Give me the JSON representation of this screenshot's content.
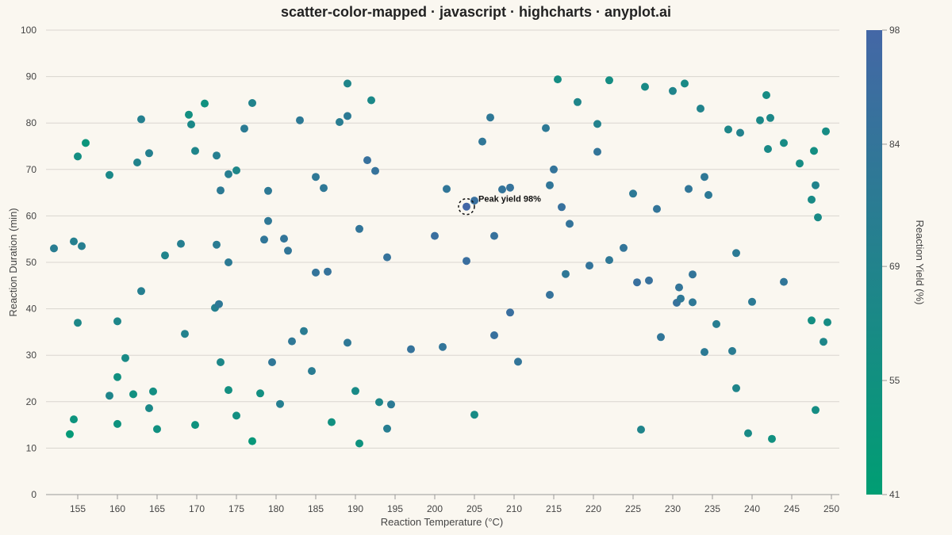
{
  "chart_data": {
    "type": "scatter",
    "title": "scatter-color-mapped · javascript · highcharts · anyplot.ai",
    "xlabel": "Reaction Temperature (°C)",
    "ylabel": "Reaction Duration (min)",
    "colorbar_label": "Reaction Yield (%)",
    "xlim": [
      151,
      251
    ],
    "ylim": [
      0,
      100
    ],
    "xticks": [
      155,
      160,
      165,
      170,
      175,
      180,
      185,
      190,
      195,
      200,
      205,
      210,
      215,
      220,
      225,
      230,
      235,
      240,
      245,
      250
    ],
    "yticks": [
      0,
      10,
      20,
      30,
      40,
      50,
      60,
      70,
      80,
      90,
      100
    ],
    "color_range": [
      41,
      98
    ],
    "color_ticks": [
      41,
      55,
      69,
      84,
      98
    ],
    "color_low": "#009e73",
    "color_high": "#4467a6",
    "grid": true,
    "annotation": {
      "label": "Peak yield 98%",
      "x": 204,
      "y": 62,
      "value": 98
    },
    "points": [
      [
        152,
        53,
        75
      ],
      [
        154.5,
        54.5,
        72
      ],
      [
        155,
        37,
        65
      ],
      [
        155.5,
        53.5,
        73
      ],
      [
        155,
        72.8,
        58
      ],
      [
        156,
        75.7,
        50
      ],
      [
        154.5,
        16.2,
        52
      ],
      [
        154,
        13,
        45
      ],
      [
        159,
        68.8,
        64
      ],
      [
        159,
        21.3,
        67
      ],
      [
        160,
        25.3,
        55
      ],
      [
        160,
        15.2,
        53
      ],
      [
        160,
        37.3,
        66
      ],
      [
        161,
        29.4,
        62
      ],
      [
        162,
        21.6,
        56
      ],
      [
        162.5,
        71.5,
        69
      ],
      [
        163,
        80.8,
        72
      ],
      [
        163,
        43.8,
        73
      ],
      [
        164,
        73.5,
        72
      ],
      [
        164,
        18.6,
        64
      ],
      [
        164.5,
        22.2,
        58
      ],
      [
        165,
        14.1,
        55
      ],
      [
        166,
        51.5,
        68
      ],
      [
        168,
        54,
        73
      ],
      [
        168.5,
        34.6,
        70
      ],
      [
        169,
        81.8,
        57
      ],
      [
        169.3,
        79.7,
        64
      ],
      [
        169.8,
        74,
        67
      ],
      [
        169.8,
        15,
        53
      ],
      [
        171,
        84.2,
        54
      ],
      [
        172.3,
        40.2,
        72
      ],
      [
        172.5,
        73,
        73
      ],
      [
        172.5,
        53.8,
        76
      ],
      [
        172.8,
        41,
        80
      ],
      [
        173,
        65.5,
        78
      ],
      [
        173,
        28.5,
        65
      ],
      [
        174,
        50,
        78
      ],
      [
        174,
        69,
        74
      ],
      [
        174,
        22.5,
        57
      ],
      [
        175,
        69.8,
        66
      ],
      [
        175,
        17,
        57
      ],
      [
        176,
        78.8,
        77
      ],
      [
        177,
        84.3,
        69
      ],
      [
        177,
        11.5,
        48
      ],
      [
        178,
        21.8,
        57
      ],
      [
        178.5,
        54.9,
        82
      ],
      [
        179,
        65.4,
        79
      ],
      [
        179,
        58.9,
        80
      ],
      [
        179.5,
        28.5,
        81
      ],
      [
        180.5,
        19.5,
        73
      ],
      [
        181,
        55.1,
        83
      ],
      [
        181.5,
        52.5,
        82
      ],
      [
        182,
        33,
        80
      ],
      [
        183,
        80.6,
        79
      ],
      [
        183.5,
        35.2,
        76
      ],
      [
        184.5,
        26.6,
        76
      ],
      [
        185,
        68.4,
        80
      ],
      [
        185,
        47.8,
        85
      ],
      [
        186,
        66,
        80
      ],
      [
        186.5,
        48,
        86
      ],
      [
        187,
        15.6,
        55
      ],
      [
        188,
        80.2,
        75
      ],
      [
        189,
        32.7,
        80
      ],
      [
        189,
        88.5,
        67
      ],
      [
        189,
        81.5,
        78
      ],
      [
        190,
        22.3,
        62
      ],
      [
        190.5,
        11,
        53
      ],
      [
        190.5,
        57.2,
        83
      ],
      [
        191.5,
        72,
        88
      ],
      [
        192,
        84.9,
        64
      ],
      [
        192.5,
        69.7,
        86
      ],
      [
        193,
        19.9,
        66
      ],
      [
        194,
        14.2,
        74
      ],
      [
        194,
        51.1,
        86
      ],
      [
        194.5,
        19.4,
        78
      ],
      [
        197,
        31.3,
        86
      ],
      [
        200,
        55.7,
        90
      ],
      [
        201,
        31.8,
        83
      ],
      [
        201.5,
        65.8,
        82
      ],
      [
        204,
        62,
        98
      ],
      [
        204,
        50.3,
        90
      ],
      [
        205,
        63.3,
        89
      ],
      [
        205,
        17.2,
        61
      ],
      [
        206,
        76,
        81
      ],
      [
        207,
        81.2,
        80
      ],
      [
        207.5,
        55.7,
        87
      ],
      [
        207.5,
        34.3,
        88
      ],
      [
        208.5,
        65.7,
        85
      ],
      [
        209.5,
        66.1,
        86
      ],
      [
        209.5,
        39.2,
        90
      ],
      [
        210.5,
        28.6,
        83
      ],
      [
        214,
        78.9,
        79
      ],
      [
        214.5,
        66.6,
        82
      ],
      [
        214.5,
        43,
        86
      ],
      [
        215,
        70,
        85
      ],
      [
        215.5,
        89.4,
        59
      ],
      [
        216,
        61.9,
        88
      ],
      [
        216.5,
        47.5,
        80
      ],
      [
        217,
        58.3,
        85
      ],
      [
        218,
        84.5,
        67
      ],
      [
        219.5,
        49.3,
        85
      ],
      [
        220.5,
        73.8,
        84
      ],
      [
        220.5,
        79.8,
        70
      ],
      [
        222,
        89.2,
        59
      ],
      [
        222,
        50.5,
        80
      ],
      [
        223.8,
        53.1,
        84
      ],
      [
        225,
        64.8,
        79
      ],
      [
        225.5,
        45.7,
        89
      ],
      [
        226,
        14,
        68
      ],
      [
        226.5,
        87.8,
        62
      ],
      [
        227,
        46.1,
        88
      ],
      [
        228,
        61.5,
        84
      ],
      [
        228.5,
        33.9,
        82
      ],
      [
        230,
        86.9,
        68
      ],
      [
        230.5,
        41.3,
        87
      ],
      [
        230.8,
        44.6,
        84
      ],
      [
        231,
        42.2,
        80
      ],
      [
        231.5,
        88.5,
        62
      ],
      [
        232,
        65.8,
        82
      ],
      [
        232.5,
        47.4,
        84
      ],
      [
        232.5,
        41.4,
        80
      ],
      [
        233.5,
        83.1,
        69
      ],
      [
        234,
        30.7,
        78
      ],
      [
        234,
        68.4,
        80
      ],
      [
        234.5,
        64.5,
        79
      ],
      [
        235.5,
        36.7,
        74
      ],
      [
        237,
        78.6,
        66
      ],
      [
        237.5,
        30.9,
        76
      ],
      [
        238,
        22.9,
        67
      ],
      [
        238,
        52,
        78
      ],
      [
        238.5,
        77.9,
        70
      ],
      [
        239.5,
        13.2,
        62
      ],
      [
        240,
        41.5,
        78
      ],
      [
        241,
        80.6,
        64
      ],
      [
        241.8,
        86,
        60
      ],
      [
        242,
        74.4,
        63
      ],
      [
        242.3,
        81.1,
        65
      ],
      [
        242.5,
        12,
        56
      ],
      [
        244,
        45.8,
        82
      ],
      [
        244,
        75.7,
        61
      ],
      [
        246,
        71.3,
        60
      ],
      [
        247.5,
        63.5,
        62
      ],
      [
        247.5,
        37.5,
        58
      ],
      [
        247.8,
        74,
        58
      ],
      [
        248,
        66.6,
        69
      ],
      [
        248,
        18.2,
        59
      ],
      [
        248.3,
        59.7,
        62
      ],
      [
        249,
        32.9,
        66
      ],
      [
        249.3,
        78.2,
        60
      ],
      [
        249.5,
        37.1,
        60
      ]
    ]
  }
}
